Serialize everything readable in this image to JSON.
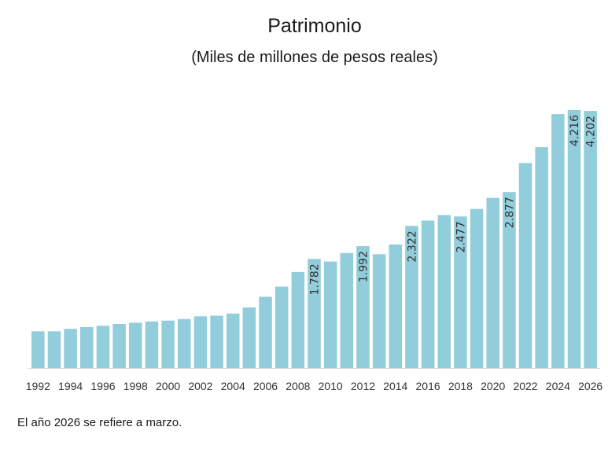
{
  "chart_data": {
    "type": "bar",
    "title": "Patrimonio",
    "subtitle": "(Miles de millones de pesos reales)",
    "footnote": "El año 2026 se refiere a marzo.",
    "categories": [
      "1992",
      "1993",
      "1994",
      "1995",
      "1996",
      "1997",
      "1998",
      "1999",
      "2000",
      "2001",
      "2002",
      "2003",
      "2004",
      "2005",
      "2006",
      "2007",
      "2008",
      "2009",
      "2010",
      "2011",
      "2012",
      "2013",
      "2014",
      "2015",
      "2016",
      "2017",
      "2018",
      "2019",
      "2020",
      "2021",
      "2022",
      "2023",
      "2024",
      "2025",
      "2026"
    ],
    "x_tick_labels": [
      "1992",
      "1994",
      "1996",
      "1998",
      "2000",
      "2002",
      "2004",
      "2006",
      "2008",
      "2010",
      "2012",
      "2014",
      "2016",
      "2018",
      "2020",
      "2022",
      "2024",
      "2026"
    ],
    "values": [
      600,
      600,
      640,
      670,
      690,
      720,
      740,
      760,
      775,
      800,
      845,
      855,
      890,
      990,
      1165,
      1330,
      1570,
      1782,
      1740,
      1880,
      1992,
      1860,
      2020,
      2322,
      2410,
      2500,
      2477,
      2600,
      2780,
      2877,
      3350,
      3610,
      4150,
      4216,
      4202
    ],
    "data_labels": [
      {
        "category": "2009",
        "text": "1.782"
      },
      {
        "category": "2012",
        "text": "1.992"
      },
      {
        "category": "2015",
        "text": "2.322"
      },
      {
        "category": "2018",
        "text": "2.477"
      },
      {
        "category": "2021",
        "text": "2.877"
      },
      {
        "category": "2025",
        "text": "4.216"
      },
      {
        "category": "2026",
        "text": "4.202"
      }
    ],
    "ylim": [
      0,
      4500
    ],
    "xlabel": "",
    "ylabel": "",
    "grid": false,
    "legend": "none",
    "bar_color": "#92cddc",
    "axis_color": "#d9d9d9"
  }
}
